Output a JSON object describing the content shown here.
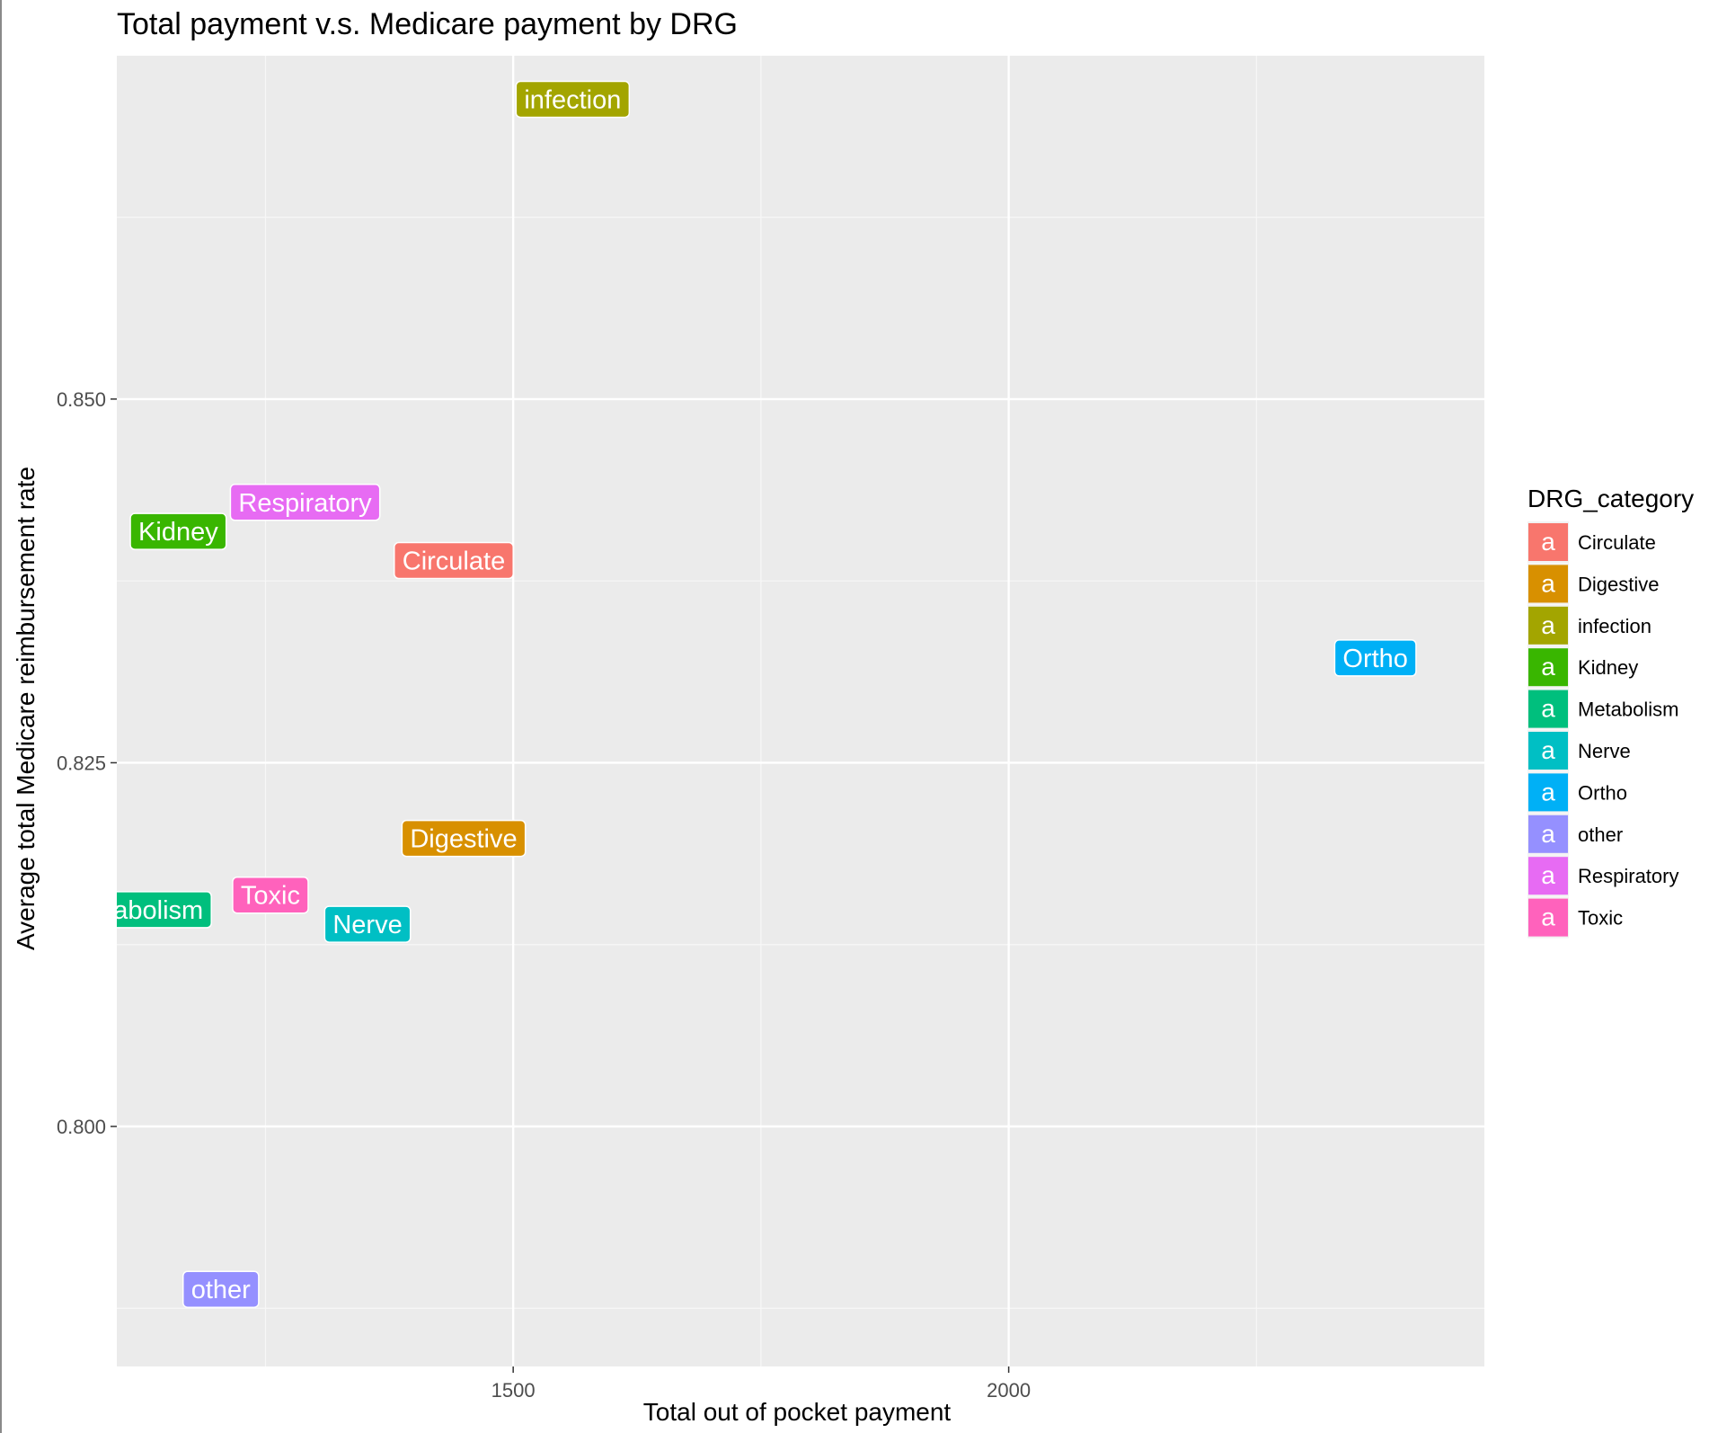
{
  "chart_data": {
    "type": "scatter",
    "title": "Total payment v.s. Medicare payment by DRG",
    "xlabel": "Total out of pocket payment",
    "ylabel": "Average total Medicare reimbursement rate",
    "xlim": [
      1100,
      2480
    ],
    "ylim": [
      0.7835,
      0.8736
    ],
    "x_ticks": [
      1500,
      2000
    ],
    "x_minor_ticks": [
      1250,
      1750,
      2250
    ],
    "y_ticks": [
      0.8,
      0.825,
      0.85
    ],
    "y_tick_labels": [
      "0.800",
      "0.825",
      "0.850"
    ],
    "y_minor_ticks": [
      0.7875,
      0.8125,
      0.8375,
      0.8625
    ],
    "grid": true,
    "legend_title": "DRG_category",
    "legend_position": "right",
    "legend_key_glyph": "a",
    "points": [
      {
        "label": "Circulate",
        "x": 1440,
        "y": 0.8389,
        "color": "#F8766D"
      },
      {
        "label": "Digestive",
        "x": 1450,
        "y": 0.8198,
        "color": "#D89000"
      },
      {
        "label": "infection",
        "x": 1560,
        "y": 0.8706,
        "color": "#A3A500"
      },
      {
        "label": "Kidney",
        "x": 1162,
        "y": 0.8409,
        "color": "#39B600"
      },
      {
        "label": "Metabolism",
        "x": 1120,
        "y": 0.8149,
        "color": "#00BF7D"
      },
      {
        "label": "Nerve",
        "x": 1353,
        "y": 0.8139,
        "color": "#00BFC4"
      },
      {
        "label": "Ortho",
        "x": 2370,
        "y": 0.8322,
        "color": "#00B0F6"
      },
      {
        "label": "other",
        "x": 1205,
        "y": 0.7888,
        "color": "#9590FF"
      },
      {
        "label": "Respiratory",
        "x": 1290,
        "y": 0.8429,
        "color": "#E76BF3"
      },
      {
        "label": "Toxic",
        "x": 1255,
        "y": 0.8159,
        "color": "#FF62BC"
      }
    ]
  }
}
